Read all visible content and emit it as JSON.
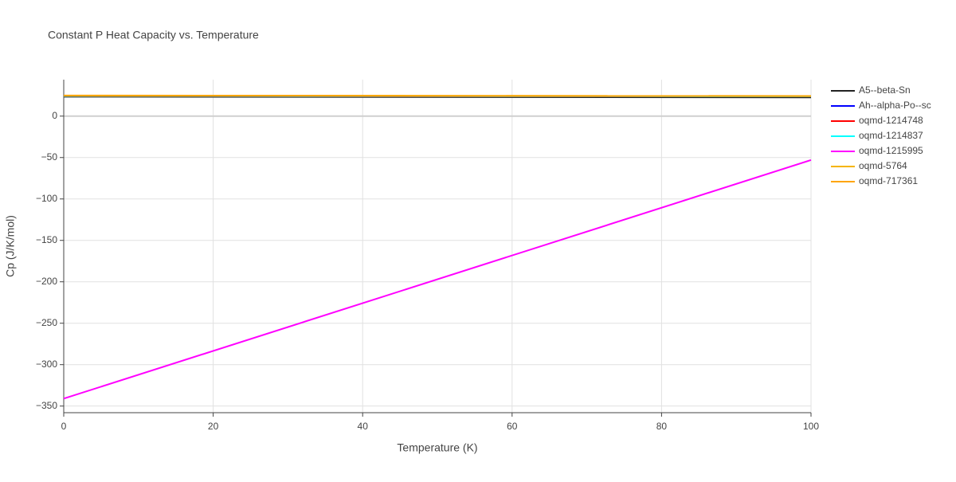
{
  "chart_data": {
    "type": "line",
    "title": "Constant P Heat Capacity vs. Temperature",
    "xlabel": "Temperature (K)",
    "ylabel": "Cp (J/K/mol)",
    "x": [
      0,
      100
    ],
    "series": [
      {
        "name": "A5--beta-Sn",
        "color": "#222222",
        "values": [
          23.5,
          22.6
        ]
      },
      {
        "name": "Ah--alpha-Po--sc",
        "color": "#0000ff",
        "values": [
          24.2,
          23.8
        ]
      },
      {
        "name": "oqmd-1214748",
        "color": "#ff0000",
        "values": [
          24.2,
          23.8
        ]
      },
      {
        "name": "oqmd-1214837",
        "color": "#00ffff",
        "values": [
          24.3,
          23.9
        ]
      },
      {
        "name": "oqmd-1215995",
        "color": "#ff00ff",
        "values": [
          -341,
          -53
        ]
      },
      {
        "name": "oqmd-5764",
        "color": "#f5b400",
        "values": [
          24.6,
          24.2
        ]
      },
      {
        "name": "oqmd-717361",
        "color": "#ffa500",
        "values": [
          24.9,
          24.3
        ]
      }
    ],
    "xlim": [
      0,
      100
    ],
    "xticks": [
      0,
      20,
      40,
      60,
      80,
      100
    ],
    "ylim": [
      -358,
      44
    ],
    "yticks": [
      {
        "value": -350,
        "label": "−350"
      },
      {
        "value": -300,
        "label": "−300"
      },
      {
        "value": -250,
        "label": "−250"
      },
      {
        "value": -200,
        "label": "−200"
      },
      {
        "value": -150,
        "label": "−150"
      },
      {
        "value": -100,
        "label": "−100"
      },
      {
        "value": -50,
        "label": "−50"
      },
      0
    ],
    "grid": true,
    "legend": "outside-right"
  }
}
